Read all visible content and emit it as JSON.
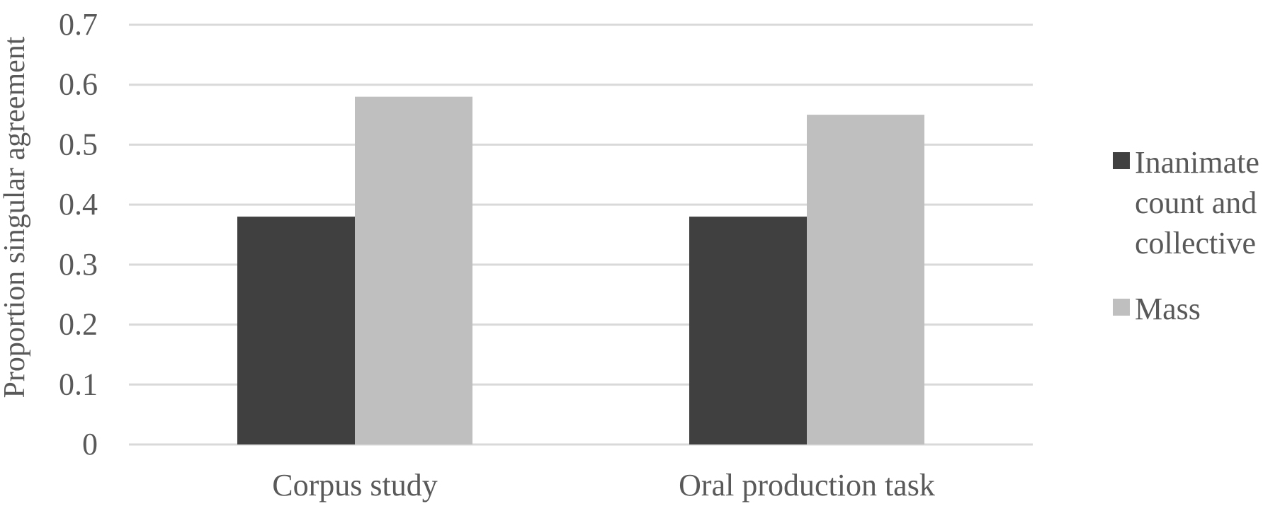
{
  "chart_data": {
    "type": "bar",
    "title": "",
    "xlabel": "",
    "ylabel": "Proportion singular agreement",
    "categories": [
      "Corpus study",
      "Oral production task"
    ],
    "series": [
      {
        "name": "Inanimate count and collective",
        "values": [
          0.38,
          0.38
        ],
        "color": "#404040"
      },
      {
        "name": "Mass",
        "values": [
          0.58,
          0.55
        ],
        "color": "#bfbfbf"
      }
    ],
    "ylim": [
      0,
      0.7
    ],
    "yticks": [
      "0",
      "0.1",
      "0.2",
      "0.3",
      "0.4",
      "0.5",
      "0.6",
      "0.7"
    ],
    "grid": true,
    "legend": {
      "placement": "right",
      "entries": [
        {
          "lines": [
            "Inanimate",
            "count and",
            "collective"
          ],
          "color": "#404040"
        },
        {
          "lines": [
            "Mass"
          ],
          "color": "#bfbfbf"
        }
      ]
    },
    "colors": {
      "grid": "#d9d9d9",
      "text": "#595959"
    }
  }
}
